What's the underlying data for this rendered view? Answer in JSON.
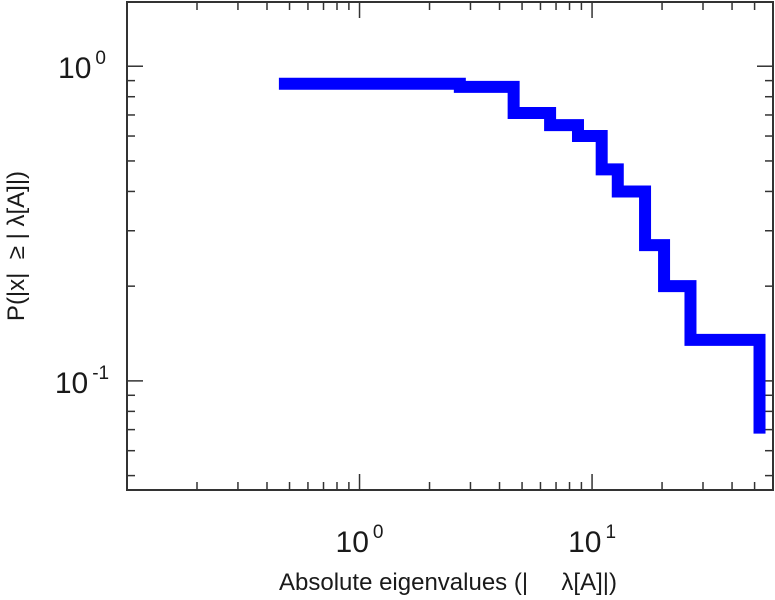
{
  "chart_data": {
    "type": "line",
    "step": true,
    "title": "",
    "xlabel": "Absolute eigenvalues (|     λ[A]|)",
    "ylabel": "P(|x|  ≥ | λ[A]|)",
    "xscale": "log",
    "yscale": "log",
    "xlim": [
      0.1,
      60
    ],
    "ylim": [
      0.045,
      1.6
    ],
    "grid": false,
    "legend": "none",
    "line_color": "#0000ff",
    "x_ticks": [
      {
        "value": 1,
        "base": "10",
        "exp": "0"
      },
      {
        "value": 10,
        "base": "10",
        "exp": "1"
      }
    ],
    "y_ticks": [
      {
        "value": 0.1,
        "base": "10",
        "exp": "-1"
      },
      {
        "value": 1,
        "base": "10",
        "exp": "0"
      }
    ],
    "series": [
      {
        "x": [
          0.45,
          2.7,
          4.6,
          6.6,
          8.7,
          11.0,
          12.9,
          16.9,
          20.4,
          26.5,
          52.5
        ],
        "y": [
          0.88,
          0.86,
          0.71,
          0.65,
          0.6,
          0.47,
          0.4,
          0.27,
          0.2,
          0.135,
          0.068
        ]
      }
    ]
  }
}
